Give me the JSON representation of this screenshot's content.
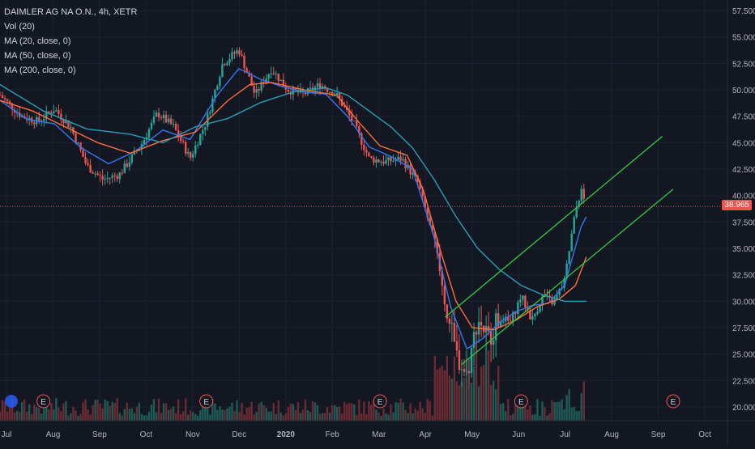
{
  "legend": {
    "symbol": "DAIMLER AG NA O.N., 4h, XETR",
    "vol": "Vol (20)",
    "ma20": "MA (20, close, 0)",
    "ma50": "MA (50, close, 0)",
    "ma200": "MA (200, close, 0)"
  },
  "colors": {
    "background": "#131722",
    "grid": "#1e2230",
    "axis_text": "#b2b5be",
    "up": "#26a69a",
    "down": "#ef5350",
    "vol_up": "#1f5a55",
    "vol_down": "#6b2b33",
    "ma20": "#3179f5",
    "ma50": "#ff6d3a",
    "ma200": "#26a0b8",
    "channel": "#2ecc40",
    "price_line": "#ef5350"
  },
  "chart_data": {
    "type": "candlestick",
    "y_ticks": [
      "57.500",
      "55.000",
      "52.500",
      "50.000",
      "47.500",
      "45.000",
      "42.500",
      "40.000",
      "37.500",
      "35.000",
      "32.500",
      "30.000",
      "27.500",
      "25.000",
      "22.500",
      "20.000"
    ],
    "ylim": [
      18.7,
      58.5
    ],
    "x_ticks": [
      "Jul",
      "Aug",
      "Sep",
      "Oct",
      "Nov",
      "Dec",
      "2020",
      "Feb",
      "Mar",
      "Apr",
      "May",
      "Jun",
      "Jul",
      "Aug",
      "Sep",
      "Oct"
    ],
    "last_price": "38.965",
    "last_value": 38.965,
    "earnings_marker": "E",
    "close_series": [
      {
        "t": 0,
        "p": 49.5
      },
      {
        "t": 4,
        "p": 47.5
      },
      {
        "t": 7,
        "p": 47.0
      },
      {
        "t": 10,
        "p": 48.2
      },
      {
        "t": 13,
        "p": 46.5
      },
      {
        "t": 16,
        "p": 42.8
      },
      {
        "t": 19,
        "p": 41.5
      },
      {
        "t": 22,
        "p": 42.0
      },
      {
        "t": 26,
        "p": 44.8
      },
      {
        "t": 29,
        "p": 47.8
      },
      {
        "t": 32,
        "p": 46.5
      },
      {
        "t": 35,
        "p": 43.5
      },
      {
        "t": 38,
        "p": 47.0
      },
      {
        "t": 41,
        "p": 52.5
      },
      {
        "t": 44,
        "p": 53.8
      },
      {
        "t": 47,
        "p": 49.5
      },
      {
        "t": 50,
        "p": 52.0
      },
      {
        "t": 53,
        "p": 50.0
      },
      {
        "t": 56,
        "p": 49.6
      },
      {
        "t": 59,
        "p": 50.5
      },
      {
        "t": 62,
        "p": 49.5
      },
      {
        "t": 65,
        "p": 47.0
      },
      {
        "t": 68,
        "p": 43.5
      },
      {
        "t": 71,
        "p": 43.2
      },
      {
        "t": 74,
        "p": 43.5
      },
      {
        "t": 77,
        "p": 41.2
      },
      {
        "t": 80,
        "p": 35.5
      },
      {
        "t": 82,
        "p": 30.0
      },
      {
        "t": 84,
        "p": 25.0
      },
      {
        "t": 86,
        "p": 23.0
      },
      {
        "t": 88,
        "p": 28.5
      },
      {
        "t": 90,
        "p": 26.5
      },
      {
        "t": 92,
        "p": 28.5
      },
      {
        "t": 94,
        "p": 28.0
      },
      {
        "t": 96,
        "p": 30.5
      },
      {
        "t": 98,
        "p": 28.2
      },
      {
        "t": 100,
        "p": 30.5
      },
      {
        "t": 102,
        "p": 29.8
      },
      {
        "t": 104,
        "p": 32.0
      },
      {
        "t": 106,
        "p": 38.5
      },
      {
        "t": 107,
        "p": 40.5
      },
      {
        "t": 108,
        "p": 38.9
      }
    ],
    "ma20": [
      [
        0,
        49
      ],
      [
        5,
        47.2
      ],
      [
        10,
        46.8
      ],
      [
        15,
        44.5
      ],
      [
        20,
        43.0
      ],
      [
        25,
        44.2
      ],
      [
        30,
        46.2
      ],
      [
        35,
        45.3
      ],
      [
        40,
        49.5
      ],
      [
        44,
        52.0
      ],
      [
        48,
        51.0
      ],
      [
        52,
        50.3
      ],
      [
        56,
        49.8
      ],
      [
        60,
        49.6
      ],
      [
        64,
        47.5
      ],
      [
        68,
        44.6
      ],
      [
        72,
        43.7
      ],
      [
        76,
        42.5
      ],
      [
        80,
        36.0
      ],
      [
        83,
        29.5
      ],
      [
        86,
        25.5
      ],
      [
        89,
        26.5
      ],
      [
        92,
        28.0
      ],
      [
        95,
        29.0
      ],
      [
        98,
        29.6
      ],
      [
        101,
        29.8
      ],
      [
        104,
        31.5
      ],
      [
        107,
        37.0
      ],
      [
        108,
        38.0
      ]
    ],
    "ma50": [
      [
        0,
        49.0
      ],
      [
        6,
        48.0
      ],
      [
        12,
        46.5
      ],
      [
        18,
        45.0
      ],
      [
        24,
        44.0
      ],
      [
        30,
        45.2
      ],
      [
        36,
        46.0
      ],
      [
        42,
        49.0
      ],
      [
        46,
        50.5
      ],
      [
        50,
        50.7
      ],
      [
        56,
        50.0
      ],
      [
        62,
        49.5
      ],
      [
        66,
        47.0
      ],
      [
        70,
        44.7
      ],
      [
        75,
        43.8
      ],
      [
        78,
        40.5
      ],
      [
        81,
        35.0
      ],
      [
        84,
        30.0
      ],
      [
        87,
        27.5
      ],
      [
        91,
        27.3
      ],
      [
        95,
        28.2
      ],
      [
        99,
        29.5
      ],
      [
        103,
        30.2
      ],
      [
        106,
        31.5
      ],
      [
        108,
        34.2
      ]
    ],
    "ma200": [
      [
        0,
        50.5
      ],
      [
        8,
        48.0
      ],
      [
        16,
        46.3
      ],
      [
        24,
        45.8
      ],
      [
        30,
        45.0
      ],
      [
        36,
        46.5
      ],
      [
        42,
        47.3
      ],
      [
        48,
        48.8
      ],
      [
        54,
        49.8
      ],
      [
        60,
        50.2
      ],
      [
        64,
        49.5
      ],
      [
        68,
        48.0
      ],
      [
        72,
        46.5
      ],
      [
        76,
        44.5
      ],
      [
        80,
        41.5
      ],
      [
        84,
        38.0
      ],
      [
        88,
        35.0
      ],
      [
        92,
        33.0
      ],
      [
        96,
        31.5
      ],
      [
        100,
        30.6
      ],
      [
        104,
        30.0
      ],
      [
        108,
        30.0
      ]
    ],
    "channel_upper": [
      [
        82,
        28.5
      ],
      [
        122,
        45.6
      ]
    ],
    "channel_lower": [
      [
        85,
        24.0
      ],
      [
        124,
        40.6
      ]
    ],
    "earnings_events": [
      8,
      38,
      70,
      96,
      124
    ],
    "x_extent": [
      0,
      134
    ]
  }
}
